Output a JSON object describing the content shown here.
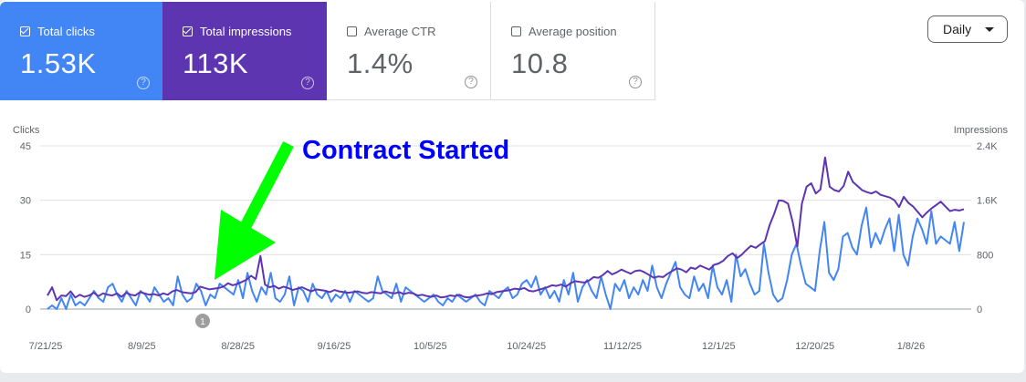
{
  "metric_cards": [
    {
      "label": "Total clicks",
      "value": "1.53K",
      "checked": true,
      "color": "#4285f4"
    },
    {
      "label": "Total impressions",
      "value": "113K",
      "checked": true,
      "color": "#5e35b1"
    },
    {
      "label": "Average CTR",
      "value": "1.4%",
      "checked": false
    },
    {
      "label": "Average position",
      "value": "10.8",
      "checked": false
    }
  ],
  "help_glyph": "?",
  "period_select": {
    "value": "Daily"
  },
  "annotation": {
    "text": "Contract Started",
    "color": "#0000ff",
    "arrow_color": "#00ff00"
  },
  "event_marker": {
    "label": "1"
  },
  "chart_data": {
    "type": "line",
    "left_axis": {
      "label": "Clicks",
      "ticks": [
        "0",
        "15",
        "30",
        "45"
      ],
      "range": [
        0,
        45
      ]
    },
    "right_axis": {
      "label": "Impressions",
      "ticks": [
        "0",
        "800",
        "1.6K",
        "2.4K"
      ],
      "range": [
        0,
        2400
      ]
    },
    "x_tick_labels": [
      "7/21/25",
      "8/9/25",
      "8/28/25",
      "9/16/25",
      "10/5/25",
      "10/24/25",
      "11/12/25",
      "12/1/25",
      "12/20/25",
      "1/8/26"
    ],
    "grid": true,
    "series": [
      {
        "name": "Clicks",
        "axis": "left",
        "color": "#4285f4",
        "values": [
          0,
          1,
          0,
          3,
          0,
          4,
          1,
          2,
          1,
          3,
          5,
          3,
          2,
          6,
          7,
          4,
          2,
          5,
          3,
          1,
          5,
          4,
          2,
          6,
          4,
          2,
          3,
          1,
          9,
          4,
          2,
          3,
          7,
          5,
          1,
          4,
          3,
          7,
          6,
          5,
          4,
          8,
          3,
          10,
          5,
          2,
          6,
          4,
          10,
          3,
          2,
          4,
          9,
          1,
          6,
          5,
          2,
          7,
          4,
          3,
          5,
          2,
          4,
          3,
          5,
          2,
          5,
          4,
          3,
          2,
          3,
          9,
          5,
          4,
          3,
          7,
          2,
          6,
          5,
          4,
          3,
          2,
          3,
          4,
          2,
          1,
          3,
          2,
          4,
          3,
          2,
          3,
          4,
          2,
          1,
          5,
          4,
          3,
          5,
          6,
          3,
          4,
          7,
          8,
          6,
          9,
          4,
          6,
          3,
          5,
          2,
          8,
          4,
          10,
          2,
          6,
          8,
          5,
          3,
          9,
          4,
          0,
          7,
          5,
          8,
          3,
          6,
          4,
          8,
          5,
          12,
          6,
          3,
          7,
          10,
          13,
          6,
          4,
          3,
          9,
          5,
          7,
          3,
          12,
          6,
          4,
          8,
          2,
          15,
          9,
          11,
          7,
          4,
          5,
          18,
          10,
          4,
          2,
          3,
          8,
          15,
          18,
          12,
          7,
          6,
          5,
          16,
          24,
          10,
          8,
          11,
          20,
          21,
          17,
          15,
          23,
          28,
          17,
          21,
          18,
          22,
          25,
          16,
          26,
          15,
          12,
          20,
          25,
          22,
          18,
          27,
          18,
          20,
          19,
          18,
          24,
          16,
          24
        ]
      },
      {
        "name": "Impressions",
        "axis": "right",
        "color": "#5e35b1",
        "values": [
          200,
          320,
          130,
          200,
          190,
          260,
          170,
          210,
          180,
          200,
          240,
          190,
          230,
          210,
          200,
          230,
          180,
          240,
          210,
          200,
          250,
          230,
          210,
          220,
          200,
          230,
          210,
          260,
          280,
          250,
          240,
          230,
          250,
          330,
          310,
          290,
          300,
          310,
          330,
          380,
          350,
          370,
          400,
          430,
          490,
          440,
          780,
          360,
          320,
          340,
          300,
          330,
          310,
          280,
          300,
          320,
          290,
          260,
          290,
          280,
          270,
          250,
          280,
          260,
          250,
          240,
          250,
          260,
          240,
          230,
          250,
          240,
          230,
          260,
          240,
          230,
          250,
          220,
          240,
          230,
          200,
          210,
          190,
          180,
          200,
          170,
          180,
          200,
          190,
          210,
          180,
          170,
          190,
          200,
          210,
          230,
          220,
          250,
          260,
          270,
          280,
          300,
          290,
          310,
          270,
          260,
          280,
          300,
          320,
          350,
          340,
          360,
          330,
          380,
          410,
          400,
          390,
          420,
          470,
          460,
          500,
          560,
          510,
          540,
          580,
          550,
          520,
          560,
          570,
          540,
          500,
          460,
          480,
          470,
          520,
          560,
          600,
          580,
          540,
          610,
          590,
          640,
          610,
          580,
          650,
          670,
          710,
          780,
          820,
          750,
          800,
          870,
          930,
          900,
          950,
          1000,
          1230,
          1400,
          1600,
          1590,
          1550,
          1280,
          920,
          1550,
          1800,
          1850,
          1700,
          1760,
          2230,
          1800,
          1750,
          1730,
          1810,
          2020,
          1870,
          1810,
          1750,
          1720,
          1700,
          1730,
          1680,
          1660,
          1640,
          1600,
          1500,
          1650,
          1560,
          1510,
          1430,
          1350,
          1420,
          1480,
          1530,
          1580,
          1510,
          1440,
          1460,
          1450,
          1470
        ]
      }
    ]
  }
}
